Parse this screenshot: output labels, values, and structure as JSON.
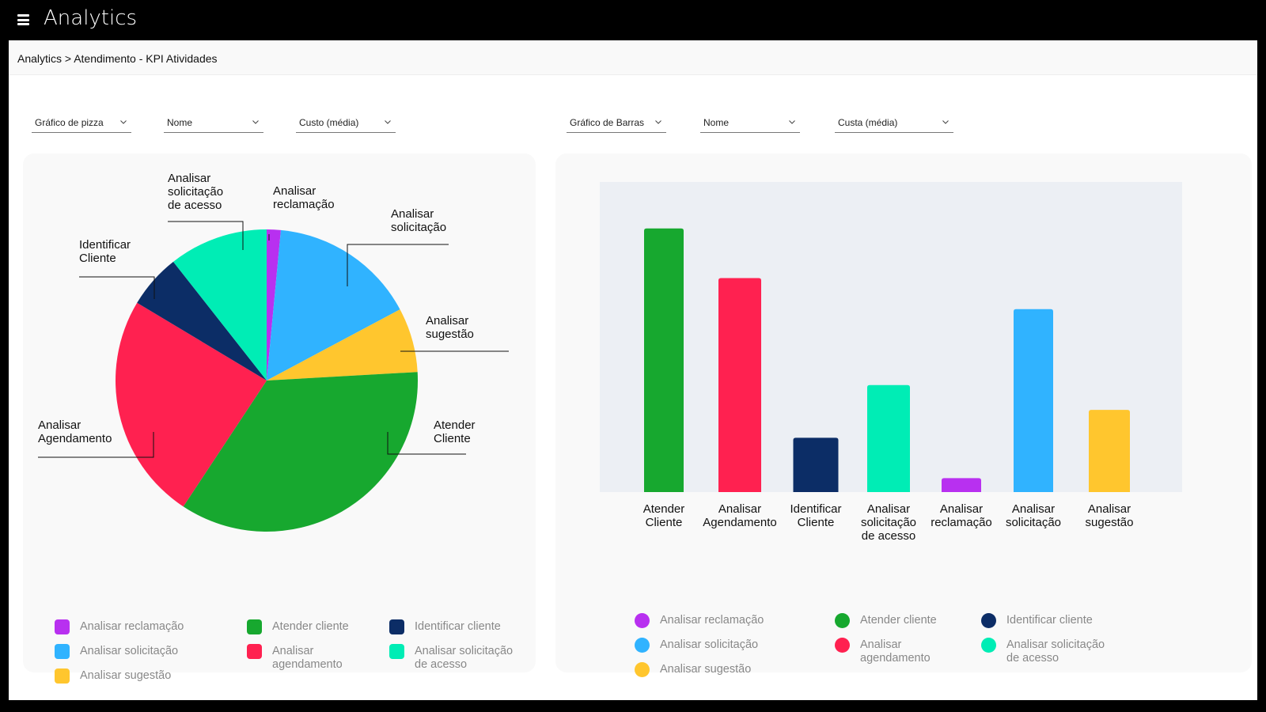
{
  "app": {
    "title": "Analytics",
    "menu_icon": "hamburger-menu-icon"
  },
  "breadcrumb": "Analytics > Atendimento - KPI Atividades",
  "colors": {
    "purple": "#B830F0",
    "blue": "#30B3FF",
    "yellow": "#FFC62E",
    "green": "#17A82F",
    "red": "#FF2150",
    "navy": "#0C2D66",
    "teal": "#00EDB5"
  },
  "pie_controls": {
    "chart_type": "Gráfico de pizza",
    "dimension": "Nome",
    "metric": "Custo (média)"
  },
  "bar_controls": {
    "chart_type": "Gráfico de Barras",
    "dimension": "Nome",
    "metric": "Custa (média)"
  },
  "pie_legend": [
    {
      "label": "Analisar reclamação",
      "color": "#B830F0"
    },
    {
      "label": "Analisar solicitação",
      "color": "#30B3FF"
    },
    {
      "label": "Analisar sugestão",
      "color": "#FFC62E"
    },
    {
      "label": "Atender cliente",
      "color": "#17A82F"
    },
    {
      "label": "Analisar\nagendamento",
      "color": "#FF2150"
    },
    {
      "label": "Identificar cliente",
      "color": "#0C2D66"
    },
    {
      "label": "Analisar solicitação\nde acesso",
      "color": "#00EDB5"
    }
  ],
  "bar_legend": [
    {
      "label": "Analisar reclamação",
      "color": "#B830F0"
    },
    {
      "label": "Analisar solicitação",
      "color": "#30B3FF"
    },
    {
      "label": "Analisar sugestão",
      "color": "#FFC62E"
    },
    {
      "label": "Atender cliente",
      "color": "#17A82F"
    },
    {
      "label": "Analisar\nagendamento",
      "color": "#FF2150"
    },
    {
      "label": "Identificar cliente",
      "color": "#0C2D66"
    },
    {
      "label": "Analisar solicitação\nde acesso",
      "color": "#00EDB5"
    }
  ],
  "chart_data": [
    {
      "type": "pie",
      "title": "",
      "slices": [
        {
          "label": "Analisar reclamação",
          "value": 1.5,
          "color": "#B830F0"
        },
        {
          "label": "Analisar solicitação",
          "value": 15.7,
          "color": "#30B3FF"
        },
        {
          "label": "Analisar sugestão",
          "value": 6.9,
          "color": "#FFC62E"
        },
        {
          "label": "Atender Cliente",
          "value": 35.2,
          "color": "#17A82F"
        },
        {
          "label": "Analisar Agendamento",
          "value": 24.3,
          "color": "#FF2150"
        },
        {
          "label": "Identificar Cliente",
          "value": 5.8,
          "color": "#0C2D66"
        },
        {
          "label": "Analisar solicitação de acesso",
          "value": 10.6,
          "color": "#00EDB5"
        }
      ]
    },
    {
      "type": "bar",
      "title": "",
      "categories": [
        "Atender Cliente",
        "Analisar Agendamento",
        "Identificar Cliente",
        "Analisar solicitação de acesso",
        "Analisar reclamação",
        "Analisar solicitação",
        "Analisar sugestão"
      ],
      "values": [
        85,
        69,
        17.5,
        34.5,
        4.5,
        59,
        26.5
      ],
      "colors": [
        "#17A82F",
        "#FF2150",
        "#0C2D66",
        "#00EDB5",
        "#B830F0",
        "#30B3FF",
        "#FFC62E"
      ],
      "ylim": [
        0,
        100
      ],
      "grid": false,
      "xlabel": "",
      "ylabel": ""
    }
  ]
}
